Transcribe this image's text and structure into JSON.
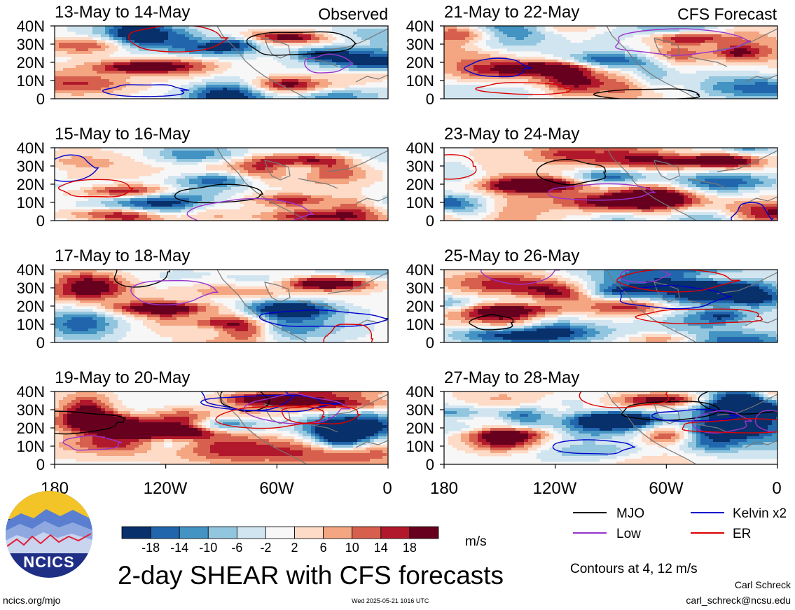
{
  "chart_data": {
    "type": "heatmap",
    "title": "2-day SHEAR with CFS forecasts",
    "units": "m/s",
    "column_labels": [
      "Observed",
      "CFS Forecast"
    ],
    "contour_note": "Contours at 4, 12 m/s",
    "panels": [
      {
        "label": "13-May to 14-May",
        "source": "observed"
      },
      {
        "label": "21-May to 22-May",
        "source": "forecast"
      },
      {
        "label": "15-May to 16-May",
        "source": "observed"
      },
      {
        "label": "23-May to 24-May",
        "source": "forecast"
      },
      {
        "label": "17-May to 18-May",
        "source": "observed"
      },
      {
        "label": "25-May to 26-May",
        "source": "forecast"
      },
      {
        "label": "19-May to 20-May",
        "source": "observed"
      },
      {
        "label": "27-May to 28-May",
        "source": "forecast"
      }
    ],
    "lat_ticks": [
      "40N",
      "30N",
      "20N",
      "10N",
      "0"
    ],
    "lat_range": [
      0,
      40
    ],
    "lon_ticks": [
      "180",
      "120W",
      "60W",
      "0"
    ],
    "lon_range": [
      -180,
      0
    ],
    "colorbar": {
      "levels": [
        -18,
        -14,
        -10,
        -6,
        -2,
        2,
        6,
        10,
        14,
        18
      ],
      "labels": [
        "-18",
        "-14",
        "-10",
        "-6",
        "-2",
        "2",
        "6",
        "10",
        "14",
        "18"
      ],
      "colors": [
        "#08306b",
        "#2166ac",
        "#4393c3",
        "#92c5de",
        "#d1e5f0",
        "#f7f7f7",
        "#fddbc7",
        "#f4a582",
        "#d6604d",
        "#b2182b",
        "#67001f"
      ]
    },
    "legend": [
      {
        "name": "MJO",
        "color": "#000000"
      },
      {
        "name": "Kelvin x2",
        "color": "#0000cc"
      },
      {
        "name": "Low",
        "color": "#9933cc"
      },
      {
        "name": "ER",
        "color": "#dd0000"
      }
    ]
  },
  "logo": {
    "text": "NCICS"
  },
  "footer": {
    "site": "ncics.org/mjo",
    "timestamp": "Wed 2025-05-21 1016 UTC",
    "author": "Carl Schreck",
    "email": "carl_schreck@ncsu.edu"
  }
}
